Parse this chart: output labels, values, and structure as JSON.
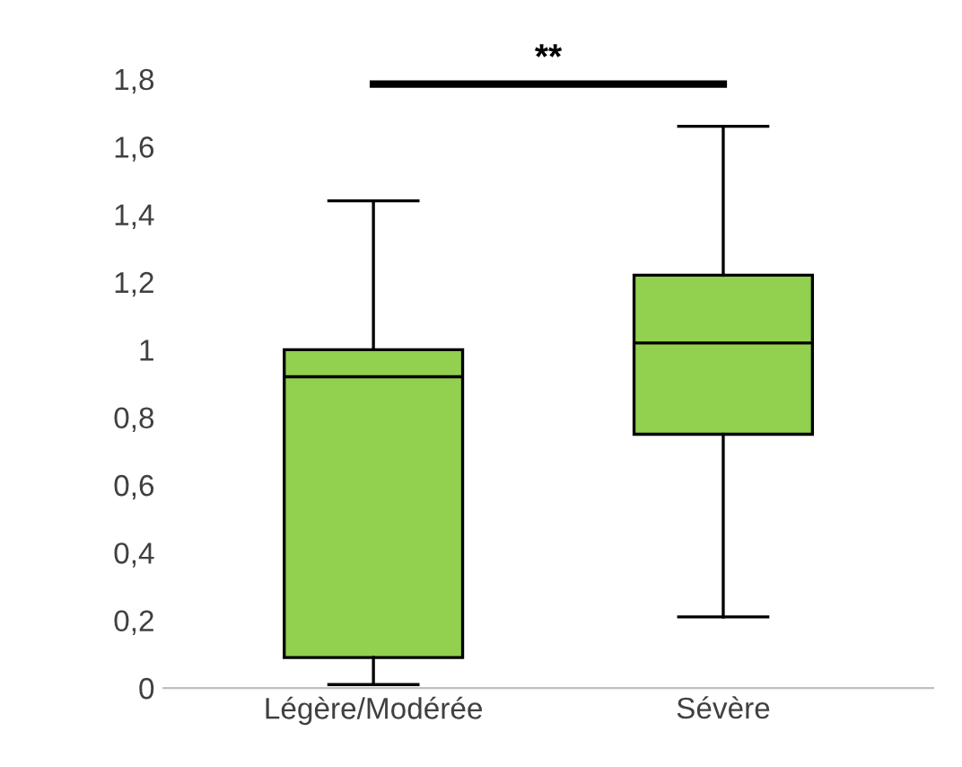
{
  "chart_data": {
    "type": "box",
    "categories": [
      "Légère/Modérée",
      "Sévère"
    ],
    "boxes": [
      {
        "low": 0.01,
        "q1": 0.09,
        "median": 0.92,
        "q3": 1.0,
        "high": 1.44
      },
      {
        "low": 0.21,
        "q1": 0.75,
        "median": 1.02,
        "q3": 1.22,
        "high": 1.66
      }
    ],
    "color": "#92d050",
    "ylim": [
      0,
      1.8
    ],
    "yticks": [
      0,
      {
        "value": 0.2,
        "label": "0,2"
      },
      {
        "value": 0.4,
        "label": "0,4"
      },
      {
        "value": 0.6,
        "label": "0,6"
      },
      {
        "value": 0.8,
        "label": "0,8"
      },
      1,
      {
        "value": 1.2,
        "label": "1,2"
      },
      {
        "value": 1.4,
        "label": "1,4"
      },
      {
        "value": 1.6,
        "label": "1,6"
      },
      {
        "value": 1.8,
        "label": "1,8"
      }
    ],
    "grid": false,
    "annotations": [
      "**"
    ]
  }
}
